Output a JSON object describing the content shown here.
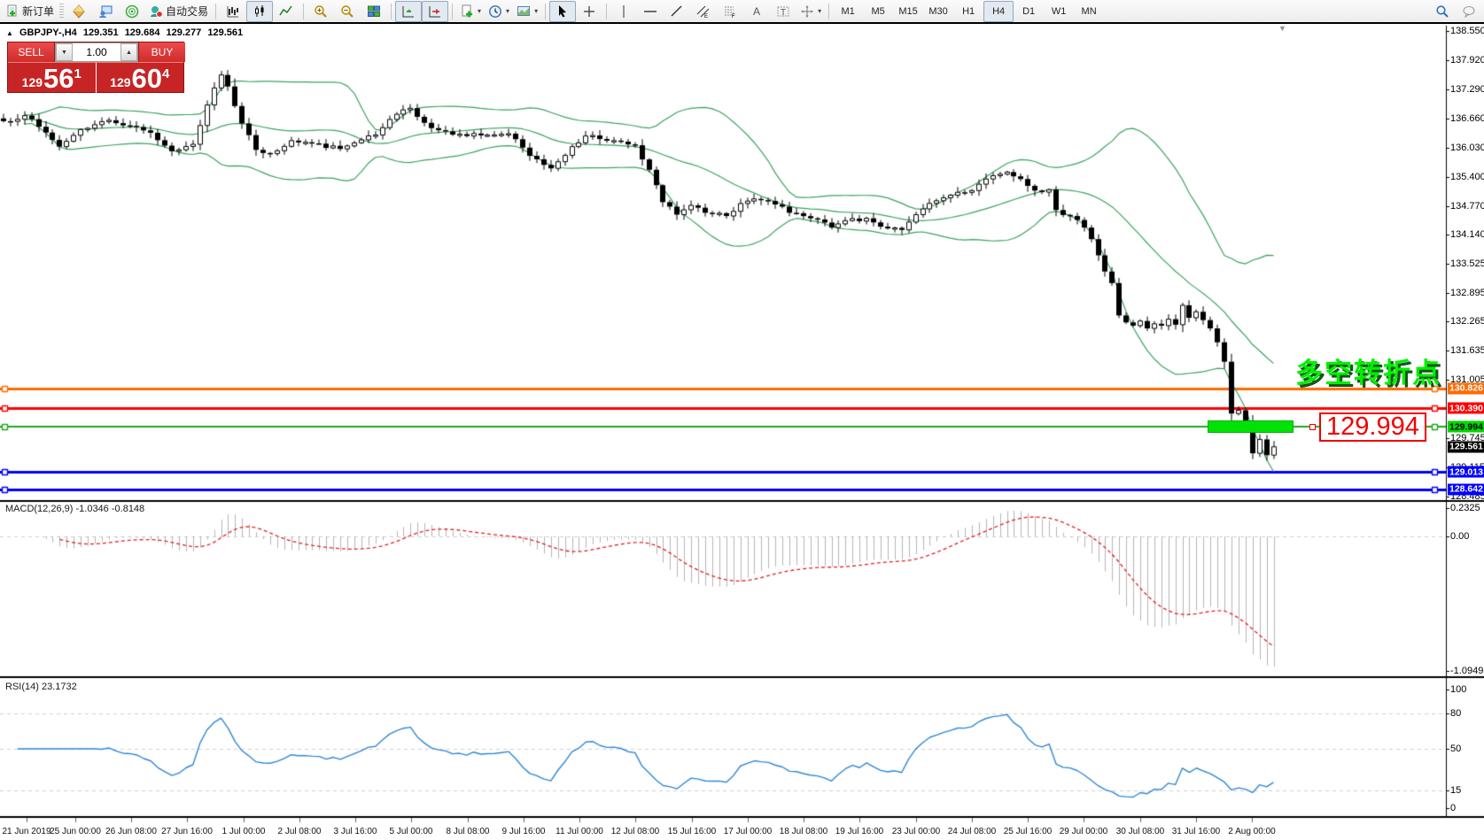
{
  "toolbar": {
    "new_order_label": "新订单",
    "auto_trading_label": "自动交易",
    "timeframes": [
      "M1",
      "M5",
      "M15",
      "M30",
      "H1",
      "H4",
      "D1",
      "W1",
      "MN"
    ],
    "active_timeframe": "H4"
  },
  "header": {
    "collapse_glyph": "▲",
    "symbol_title": "GBPJPY-,H4",
    "open": "129.351",
    "high": "129.684",
    "low": "129.277",
    "close": "129.561"
  },
  "trade_panel": {
    "sell_label": "SELL",
    "buy_label": "BUY",
    "volume": "1.00",
    "sell_price": {
      "small": "129",
      "big": "56",
      "sup": "1"
    },
    "buy_price": {
      "small": "129",
      "big": "60",
      "sup": "4"
    }
  },
  "annotations": {
    "turning_point_text": "多空转折点",
    "callout_price": "129.994",
    "highlight_color": "#00e204"
  },
  "indicators": {
    "macd_name": "MACD(12,26,9)",
    "macd_value": "-1.0346",
    "macd_signal": "-0.8148",
    "rsi_name": "RSI(14)",
    "rsi_value": "23.1732"
  },
  "price_axis": {
    "ticks": [
      {
        "text": "138.550",
        "value": 138.55
      },
      {
        "text": "137.920",
        "value": 137.92
      },
      {
        "text": "137.290",
        "value": 137.29
      },
      {
        "text": "136.660",
        "value": 136.66
      },
      {
        "text": "136.030",
        "value": 136.03
      },
      {
        "text": "135.400",
        "value": 135.4
      },
      {
        "text": "134.770",
        "value": 134.77
      },
      {
        "text": "134.140",
        "value": 134.14
      },
      {
        "text": "133.525",
        "value": 133.525
      },
      {
        "text": "132.895",
        "value": 132.895
      },
      {
        "text": "132.265",
        "value": 132.265
      },
      {
        "text": "131.635",
        "value": 131.635
      },
      {
        "text": "131.005",
        "value": 131.005
      },
      {
        "text": "129.745",
        "value": 129.745
      },
      {
        "text": "129.115",
        "value": 129.115
      },
      {
        "text": "128.485",
        "value": 128.485
      }
    ],
    "current_price": {
      "text": "129.561",
      "value": 129.561,
      "bg": "#000000",
      "fg": "#ffffff"
    }
  },
  "macd_axis": [
    {
      "text": "0.2325",
      "value": 0.2325
    },
    {
      "text": "0.00",
      "value": 0.0
    },
    {
      "text": "-1.0949",
      "value": -1.0949
    }
  ],
  "rsi_axis": [
    {
      "text": "100",
      "value": 100
    },
    {
      "text": "80",
      "value": 80
    },
    {
      "text": "50",
      "value": 50
    },
    {
      "text": "15",
      "value": 15
    },
    {
      "text": "0",
      "value": 0
    }
  ],
  "time_axis": {
    "labels": [
      "21 Jun 2019",
      "25 Jun 00:00",
      "26 Jun 08:00",
      "27 Jun 16:00",
      "1 Jul 00:00",
      "2 Jul 08:00",
      "3 Jul 16:00",
      "5 Jul 00:00",
      "8 Jul 08:00",
      "9 Jul 16:00",
      "11 Jul 00:00",
      "12 Jul 08:00",
      "15 Jul 16:00",
      "17 Jul 00:00",
      "18 Jul 08:00",
      "19 Jul 16:00",
      "23 Jul 00:00",
      "24 Jul 08:00",
      "25 Jul 16:00",
      "29 Jul 00:00",
      "30 Jul 08:00",
      "31 Jul 16:00",
      "2 Aug 00:00"
    ],
    "x_centers": [
      30,
      85,
      148,
      211,
      275,
      338,
      401,
      464,
      528,
      591,
      654,
      717,
      781,
      844,
      907,
      970,
      1034,
      1097,
      1160,
      1223,
      1287,
      1350,
      1413
    ]
  },
  "chart_data": {
    "type": "candlestick",
    "symbol": "GBPJPY",
    "timeframe": "H4",
    "bars": 182,
    "price_range": [
      128.485,
      138.55
    ],
    "close_waypoints": [
      [
        0,
        136.6
      ],
      [
        3,
        136.72
      ],
      [
        5,
        136.48
      ],
      [
        8,
        136.05
      ],
      [
        11,
        136.42
      ],
      [
        15,
        136.62
      ],
      [
        18,
        136.5
      ],
      [
        21,
        136.35
      ],
      [
        24,
        135.95
      ],
      [
        27,
        136.1
      ],
      [
        29,
        136.95
      ],
      [
        31,
        137.6
      ],
      [
        32,
        137.35
      ],
      [
        34,
        136.55
      ],
      [
        36,
        135.98
      ],
      [
        38,
        135.9
      ],
      [
        41,
        136.18
      ],
      [
        44,
        136.12
      ],
      [
        48,
        136.0
      ],
      [
        53,
        136.3
      ],
      [
        56,
        136.75
      ],
      [
        58,
        136.88
      ],
      [
        61,
        136.45
      ],
      [
        65,
        136.32
      ],
      [
        69,
        136.3
      ],
      [
        72,
        136.33
      ],
      [
        75,
        135.85
      ],
      [
        78,
        135.58
      ],
      [
        81,
        136.05
      ],
      [
        83,
        136.28
      ],
      [
        87,
        136.18
      ],
      [
        90,
        136.08
      ],
      [
        92,
        135.55
      ],
      [
        94,
        134.85
      ],
      [
        96,
        134.58
      ],
      [
        98,
        134.78
      ],
      [
        100,
        134.62
      ],
      [
        103,
        134.55
      ],
      [
        105,
        134.82
      ],
      [
        107,
        134.92
      ],
      [
        110,
        134.8
      ],
      [
        112,
        134.62
      ],
      [
        115,
        134.5
      ],
      [
        118,
        134.3
      ],
      [
        120,
        134.45
      ],
      [
        123,
        134.5
      ],
      [
        125,
        134.32
      ],
      [
        128,
        134.25
      ],
      [
        130,
        134.58
      ],
      [
        133,
        134.88
      ],
      [
        135,
        135.0
      ],
      [
        138,
        135.1
      ],
      [
        140,
        135.35
      ],
      [
        143,
        135.5
      ],
      [
        145,
        135.35
      ],
      [
        147,
        135.1
      ],
      [
        149,
        135.12
      ],
      [
        150,
        134.68
      ],
      [
        152,
        134.55
      ],
      [
        154,
        134.3
      ],
      [
        155,
        134.05
      ],
      [
        156,
        133.7
      ],
      [
        157,
        133.35
      ],
      [
        158,
        133.1
      ],
      [
        159,
        132.4
      ],
      [
        160,
        132.25
      ],
      [
        161,
        132.18
      ],
      [
        162,
        132.28
      ],
      [
        163,
        132.12
      ],
      [
        164,
        132.22
      ],
      [
        165,
        132.18
      ],
      [
        166,
        132.32
      ],
      [
        167,
        132.2
      ],
      [
        168,
        132.62
      ],
      [
        169,
        132.35
      ],
      [
        170,
        132.48
      ],
      [
        171,
        132.3
      ],
      [
        172,
        132.12
      ],
      [
        173,
        131.82
      ],
      [
        174,
        131.4
      ],
      [
        175,
        130.28
      ],
      [
        176,
        130.35
      ],
      [
        177,
        130.12
      ],
      [
        178,
        129.42
      ],
      [
        179,
        129.72
      ],
      [
        180,
        129.38
      ],
      [
        181,
        129.561
      ]
    ],
    "bollinger": {
      "period": 20,
      "deviation": 2,
      "color": "#3aa35e"
    },
    "macd": {
      "params": [
        12,
        26,
        9
      ],
      "bar_color": "#b4b4b4",
      "signal_color": "#e02020",
      "range": [
        -1.0949,
        0.2325
      ]
    },
    "rsi": {
      "period": 14,
      "color": "#2f86d6",
      "levels": [
        80,
        50,
        15
      ],
      "range": [
        0,
        100
      ]
    },
    "horizontal_lines": [
      {
        "text": "130.826",
        "value": 130.826,
        "color": "#ff6a00",
        "tag_fg": "#ffffff",
        "width": 3
      },
      {
        "text": "130.390",
        "value": 130.39,
        "color": "#ff0000",
        "tag_fg": "#ffffff",
        "width": 3
      },
      {
        "text": "129.994",
        "value": 129.994,
        "color": "#1fa81f",
        "tag_bg": "#00d800",
        "tag_fg": "#000000",
        "width": 2
      },
      {
        "text": "129.013",
        "value": 129.013,
        "color": "#0000ff",
        "tag_fg": "#ffffff",
        "width": 3
      },
      {
        "text": "128.642",
        "value": 128.642,
        "color": "#0000ff",
        "tag_fg": "#ffffff",
        "width": 3
      }
    ]
  }
}
